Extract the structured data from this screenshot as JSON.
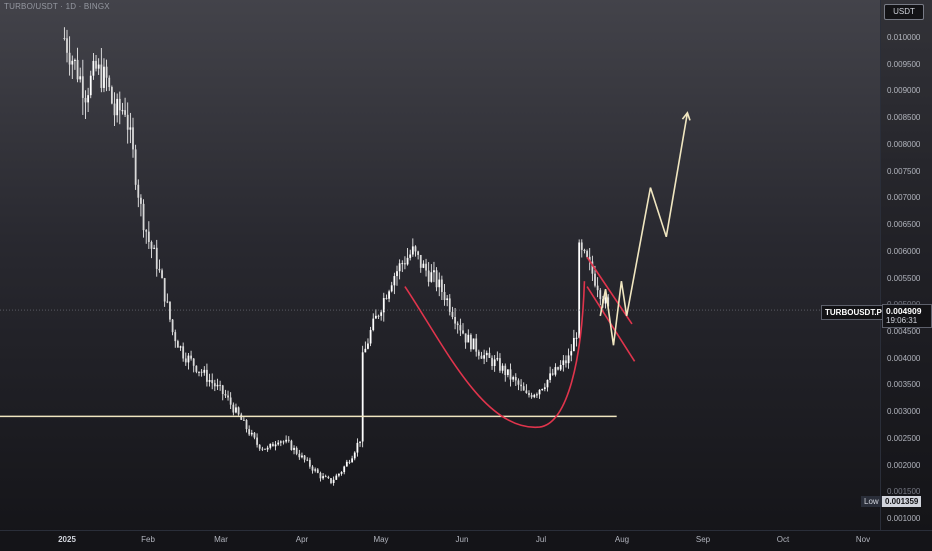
{
  "header": {
    "symbol_title": "TURBO/USDT · 1D · BINGX"
  },
  "price_axis": {
    "unit": "USDT",
    "ticks": [
      "0.010000",
      "0.009500",
      "0.009000",
      "0.008500",
      "0.008000",
      "0.007500",
      "0.007000",
      "0.006500",
      "0.006000",
      "0.005500",
      "0.004500",
      "0.004000",
      "0.003500",
      "0.003000",
      "0.002500",
      "0.002000",
      "0.001000"
    ],
    "partial_ticks": [
      "0.005000",
      "0.001500"
    ]
  },
  "time_axis": {
    "labels": [
      "2025",
      "Feb",
      "Mar",
      "Apr",
      "May",
      "Jun",
      "Jul",
      "Aug",
      "Sep",
      "Oct",
      "Nov"
    ]
  },
  "current_price": {
    "symbol": "TURBOUSDT.PS",
    "price": "0.004909",
    "countdown": "19:06:31"
  },
  "low": {
    "label": "Low",
    "value": "0.001359"
  },
  "colors": {
    "up": "#ffffff",
    "down": "#ffffff",
    "support": "#f0e6c0",
    "cup": "#e0344c",
    "wedge": "#e0344c",
    "projection": "#f0e6c0"
  },
  "chart_data": {
    "type": "candlestick",
    "symbol": "TURBO/USDT",
    "interval": "1D",
    "exchange": "BINGX",
    "currency": "USDT",
    "x_labels": [
      "2025",
      "Feb",
      "Mar",
      "Apr",
      "May",
      "Jun",
      "Jul",
      "Aug",
      "Sep",
      "Oct",
      "Nov"
    ],
    "y_range": [
      0.0008,
      0.0107
    ],
    "y_ticks": [
      0.001,
      0.0015,
      0.002,
      0.0025,
      0.003,
      0.0035,
      0.004,
      0.0045,
      0.005,
      0.0055,
      0.006,
      0.0065,
      0.007,
      0.0075,
      0.008,
      0.0085,
      0.009,
      0.0095,
      0.01
    ],
    "close_path": [
      [
        "2024-12-31",
        0.01
      ],
      [
        "2025-01-04",
        0.0095
      ],
      [
        "2025-01-08",
        0.009
      ],
      [
        "2025-01-12",
        0.0094
      ],
      [
        "2025-01-16",
        0.0092
      ],
      [
        "2025-01-19",
        0.0086
      ],
      [
        "2025-01-23",
        0.0087
      ],
      [
        "2025-01-26",
        0.0078
      ],
      [
        "2025-01-29",
        0.0068
      ],
      [
        "2025-02-01",
        0.0062
      ],
      [
        "2025-02-04",
        0.0058
      ],
      [
        "2025-02-07",
        0.0052
      ],
      [
        "2025-02-10",
        0.0045
      ],
      [
        "2025-02-14",
        0.0041
      ],
      [
        "2025-02-18",
        0.0039
      ],
      [
        "2025-02-22",
        0.0037
      ],
      [
        "2025-02-26",
        0.0035
      ],
      [
        "2025-03-02",
        0.0033
      ],
      [
        "2025-03-06",
        0.003
      ],
      [
        "2025-03-10",
        0.0027
      ],
      [
        "2025-03-14",
        0.0024
      ],
      [
        "2025-03-18",
        0.0023
      ],
      [
        "2025-03-22",
        0.0025
      ],
      [
        "2025-03-26",
        0.0024
      ],
      [
        "2025-03-30",
        0.0022
      ],
      [
        "2025-04-03",
        0.002
      ],
      [
        "2025-04-07",
        0.0018
      ],
      [
        "2025-04-11",
        0.0017
      ],
      [
        "2025-04-15",
        0.0019
      ],
      [
        "2025-04-19",
        0.0022
      ],
      [
        "2025-04-22",
        0.0025
      ],
      [
        "2025-04-23",
        0.004
      ],
      [
        "2025-04-26",
        0.0045
      ],
      [
        "2025-04-30",
        0.005
      ],
      [
        "2025-05-04",
        0.0055
      ],
      [
        "2025-05-08",
        0.0058
      ],
      [
        "2025-05-12",
        0.006
      ],
      [
        "2025-05-16",
        0.0057
      ],
      [
        "2025-05-20",
        0.0055
      ],
      [
        "2025-05-24",
        0.0052
      ],
      [
        "2025-05-28",
        0.0048
      ],
      [
        "2025-06-01",
        0.0044
      ],
      [
        "2025-06-05",
        0.0042
      ],
      [
        "2025-06-09",
        0.004
      ],
      [
        "2025-06-13",
        0.0039
      ],
      [
        "2025-06-17",
        0.0037
      ],
      [
        "2025-06-21",
        0.0035
      ],
      [
        "2025-06-24",
        0.0033
      ],
      [
        "2025-06-28",
        0.0034
      ],
      [
        "2025-07-02",
        0.0036
      ],
      [
        "2025-07-06",
        0.0038
      ],
      [
        "2025-07-10",
        0.004
      ],
      [
        "2025-07-13",
        0.0045
      ],
      [
        "2025-07-14",
        0.006
      ],
      [
        "2025-07-17",
        0.0058
      ],
      [
        "2025-07-21",
        0.0054
      ],
      [
        "2025-07-25",
        0.0049
      ]
    ],
    "low_value": 0.001359,
    "current_price": 0.004909,
    "annotations": [
      {
        "type": "horizontal_line",
        "label": "support",
        "y": 0.00292,
        "x_start": "2024-12-31",
        "x_end": "2025-08-01"
      },
      {
        "type": "cup_curve",
        "from": [
          "2025-05-09",
          0.00535
        ],
        "bottom": [
          "2025-06-29",
          0.00272
        ],
        "to": [
          "2025-07-16",
          0.00545
        ]
      },
      {
        "type": "wedge_upper",
        "from": [
          "2025-07-17",
          0.0059
        ],
        "to": [
          "2025-08-03",
          0.00465
        ]
      },
      {
        "type": "wedge_lower",
        "from": [
          "2025-07-17",
          0.00535
        ],
        "to": [
          "2025-08-04",
          0.00395
        ]
      },
      {
        "type": "projection",
        "points": [
          [
            "2025-07-22",
            0.0048
          ],
          [
            "2025-07-24",
            0.0053
          ],
          [
            "2025-07-27",
            0.00425
          ],
          [
            "2025-07-30",
            0.00545
          ],
          [
            "2025-08-01",
            0.0048
          ],
          [
            "2025-08-10",
            0.0072
          ],
          [
            "2025-08-16",
            0.00628
          ],
          [
            "2025-08-24",
            0.0086
          ]
        ]
      }
    ]
  }
}
